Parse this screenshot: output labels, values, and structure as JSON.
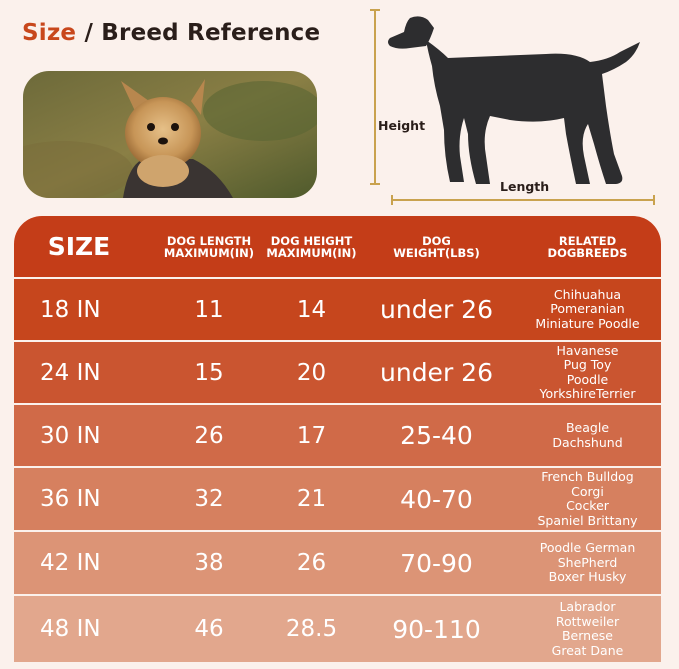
{
  "header": {
    "title_accent": "Size",
    "title_slash": "/",
    "title_rest": "Breed Reference"
  },
  "diagram": {
    "height_label": "Height",
    "length_label": "Length"
  },
  "colors": {
    "accent": "#c8471c",
    "header_row": "#c43d18",
    "diagram_lines": "#c9a24e",
    "dog_silhouette": "#2d2d2f"
  },
  "table": {
    "columns": [
      "SIZE",
      "DOG LENGTH\nMAXIMUM(IN)",
      "DOG HEIGHT\nMAXIMUM(IN)",
      "DOG\nWEIGHT(LBS)",
      "RELATED\nDOGBREEDS"
    ],
    "rows": [
      {
        "size": "18 IN",
        "length": "11",
        "height": "14",
        "weight": "under 26",
        "breeds": [
          "Chihuahua",
          "Pomeranian",
          "Miniature Poodle"
        ],
        "color": "#c6461d"
      },
      {
        "size": "24 IN",
        "length": "15",
        "height": "20",
        "weight": "under 26",
        "breeds": [
          "Havanese",
          "Pug Toy",
          "Poodle",
          "YorkshireTerrier"
        ],
        "color": "#ca5530"
      },
      {
        "size": "30 IN",
        "length": "26",
        "height": "17",
        "weight": "25-40",
        "breeds": [
          "Beagle",
          "Dachshund"
        ],
        "color": "#d06a48"
      },
      {
        "size": "36 IN",
        "length": "32",
        "height": "21",
        "weight": "40-70",
        "breeds": [
          "French Bulldog",
          "Corgi",
          "Cocker",
          "Spaniel Brittany"
        ],
        "color": "#d6805f"
      },
      {
        "size": "42 IN",
        "length": "38",
        "height": "26",
        "weight": "70-90",
        "breeds": [
          "Poodle German",
          "ShePherd",
          "Boxer Husky"
        ],
        "color": "#dc9476"
      },
      {
        "size": "48 IN",
        "length": "46",
        "height": "28.5",
        "weight": "90-110",
        "breeds": [
          "Labrador",
          "Rottweiler",
          "Bernese",
          "Great Dane"
        ],
        "color": "#e2a78d"
      }
    ]
  }
}
